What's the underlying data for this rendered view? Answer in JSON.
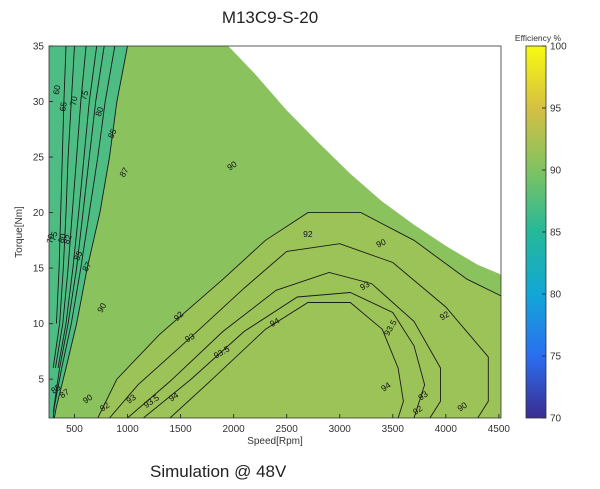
{
  "chart_data": {
    "type": "contour",
    "title": "M13C9-S-20",
    "caption": "Simulation @ 48V",
    "xlabel": "Speed[Rpm]",
    "ylabel": "Torque[Nm]",
    "xlim": [
      260,
      4520
    ],
    "ylim": [
      1.5,
      35
    ],
    "xticks": [
      500,
      1000,
      1500,
      2000,
      2500,
      3000,
      3500,
      4000,
      4500
    ],
    "yticks": [
      5,
      10,
      15,
      20,
      25,
      30,
      35
    ],
    "colorbar": {
      "label": "Efficiency %",
      "range": [
        70,
        100
      ],
      "ticks": [
        70,
        75,
        80,
        85,
        90,
        95,
        100
      ],
      "colors": [
        "#3b2c8f",
        "#2b6ef0",
        "#12a7d6",
        "#25b89a",
        "#7fc361",
        "#d6c043",
        "#f8fa10"
      ]
    },
    "torque_limit_curve": [
      [
        1950,
        35
      ],
      [
        2200,
        32.5
      ],
      [
        2500,
        29.2
      ],
      [
        2800,
        26.3
      ],
      [
        3100,
        23.5
      ],
      [
        3400,
        21
      ],
      [
        3700,
        18.9
      ],
      [
        4000,
        17
      ],
      [
        4300,
        15.3
      ],
      [
        4500,
        14.5
      ]
    ],
    "contour_levels": [
      60,
      65,
      70,
      75,
      80,
      82,
      85,
      87,
      90,
      92,
      93,
      93.5,
      94
    ],
    "contour_labels": [
      "60",
      "65",
      "70",
      "75",
      "80",
      "82",
      "85",
      "87",
      "90",
      "92",
      "93",
      "93.5",
      "94"
    ],
    "bottom_labels": [
      "85",
      "87",
      "90",
      "92",
      "93",
      "93.5",
      "94",
      "94",
      "93",
      "92",
      "90"
    ],
    "grid": false
  }
}
